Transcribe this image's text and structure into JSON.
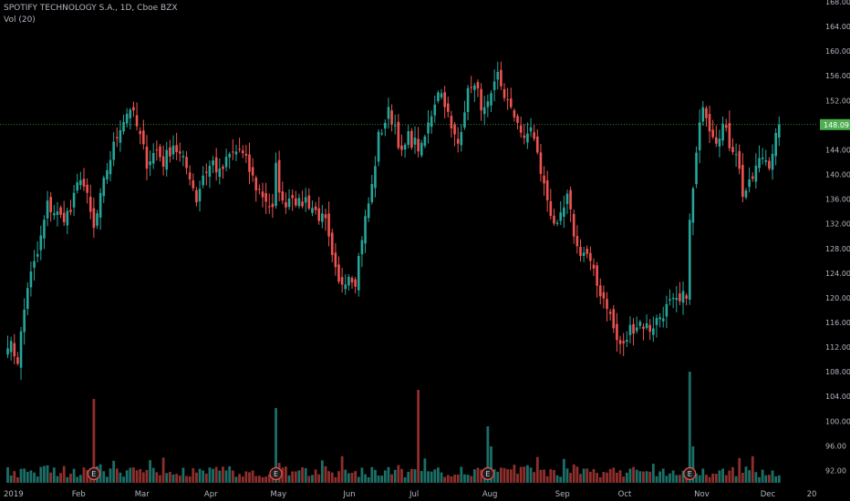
{
  "legend": {
    "symbol": "SPOTIFY TECHNOLOGY S.A., 1D, Cboe BZX",
    "indicator": "Vol (20)"
  },
  "price_tag": "148.09",
  "earnings_marker_label": "E",
  "colors": {
    "background": "#000000",
    "up": "#26a69a",
    "down": "#ef5350",
    "volume_up": "#1b6f67",
    "volume_down": "#8e2f2c",
    "axis_text": "#b2b5be",
    "price_line": "#4caf50",
    "price_tag_bg": "#4caf50"
  },
  "chart_data": {
    "type": "candlestick",
    "title": "SPOTIFY TECHNOLOGY S.A., 1D, Cboe BZX",
    "yaxis": {
      "min": 90,
      "max": 168,
      "ticks": [
        92,
        96,
        100,
        104,
        108,
        112,
        116,
        120,
        124,
        128,
        132,
        136,
        140,
        144,
        148,
        152,
        156,
        160,
        164,
        168
      ]
    },
    "xaxis": {
      "labels": [
        {
          "label": "2019",
          "i": 0
        },
        {
          "label": "Feb",
          "i": 21
        },
        {
          "label": "Mar",
          "i": 40
        },
        {
          "label": "Apr",
          "i": 61
        },
        {
          "label": "May",
          "i": 81
        },
        {
          "label": "Jun",
          "i": 103
        },
        {
          "label": "Jul",
          "i": 123
        },
        {
          "label": "Aug",
          "i": 145
        },
        {
          "label": "Sep",
          "i": 167
        },
        {
          "label": "Oct",
          "i": 186
        },
        {
          "label": "Nov",
          "i": 209
        },
        {
          "label": "Dec",
          "i": 229
        },
        {
          "label": "20",
          "i": 243
        }
      ]
    },
    "last_price": 148.09,
    "earnings_indices": [
      26,
      81,
      145,
      206
    ],
    "close_keypoints": [
      [
        0,
        113
      ],
      [
        3,
        110
      ],
      [
        6,
        122
      ],
      [
        9,
        127
      ],
      [
        12,
        135
      ],
      [
        16,
        133
      ],
      [
        19,
        134
      ],
      [
        22,
        140
      ],
      [
        24,
        136
      ],
      [
        26,
        131
      ],
      [
        28,
        136
      ],
      [
        30,
        141
      ],
      [
        34,
        148
      ],
      [
        37,
        151
      ],
      [
        40,
        146
      ],
      [
        42,
        142
      ],
      [
        45,
        144
      ],
      [
        47,
        142
      ],
      [
        50,
        145
      ],
      [
        55,
        140
      ],
      [
        57,
        136
      ],
      [
        59,
        140
      ],
      [
        62,
        142
      ],
      [
        64,
        140
      ],
      [
        67,
        143
      ],
      [
        70,
        144
      ],
      [
        72,
        142
      ],
      [
        75,
        138
      ],
      [
        78,
        136
      ],
      [
        80,
        134
      ],
      [
        81,
        141
      ],
      [
        83,
        135
      ],
      [
        86,
        137
      ],
      [
        88,
        135
      ],
      [
        90,
        136
      ],
      [
        93,
        134
      ],
      [
        96,
        132
      ],
      [
        98,
        126
      ],
      [
        100,
        122
      ],
      [
        103,
        124
      ],
      [
        105,
        123
      ],
      [
        107,
        130
      ],
      [
        110,
        138
      ],
      [
        112,
        146
      ],
      [
        115,
        150
      ],
      [
        117,
        148
      ],
      [
        119,
        143
      ],
      [
        121,
        146
      ],
      [
        123,
        145
      ],
      [
        125,
        144
      ],
      [
        127,
        148
      ],
      [
        130,
        154
      ],
      [
        132,
        152
      ],
      [
        134,
        147
      ],
      [
        136,
        145
      ],
      [
        138,
        151
      ],
      [
        140,
        155
      ],
      [
        142,
        153
      ],
      [
        144,
        150
      ],
      [
        146,
        152
      ],
      [
        148,
        156
      ],
      [
        150,
        153
      ],
      [
        152,
        150
      ],
      [
        154,
        149
      ],
      [
        156,
        145
      ],
      [
        158,
        148
      ],
      [
        160,
        143
      ],
      [
        162,
        138
      ],
      [
        164,
        134
      ],
      [
        166,
        131
      ],
      [
        169,
        136
      ],
      [
        172,
        128
      ],
      [
        175,
        127
      ],
      [
        178,
        122
      ],
      [
        181,
        119
      ],
      [
        184,
        113
      ],
      [
        186,
        112
      ],
      [
        188,
        115
      ],
      [
        191,
        116
      ],
      [
        194,
        115
      ],
      [
        197,
        117
      ],
      [
        200,
        119
      ],
      [
        203,
        119
      ],
      [
        205,
        121
      ],
      [
        206,
        132
      ],
      [
        208,
        143
      ],
      [
        210,
        152
      ],
      [
        212,
        148
      ],
      [
        214,
        146
      ],
      [
        216,
        148
      ],
      [
        218,
        145
      ],
      [
        220,
        144
      ],
      [
        222,
        137
      ],
      [
        224,
        138
      ],
      [
        226,
        141
      ],
      [
        228,
        143
      ],
      [
        230,
        142
      ],
      [
        232,
        146
      ],
      [
        233,
        148.09
      ]
    ]
  }
}
